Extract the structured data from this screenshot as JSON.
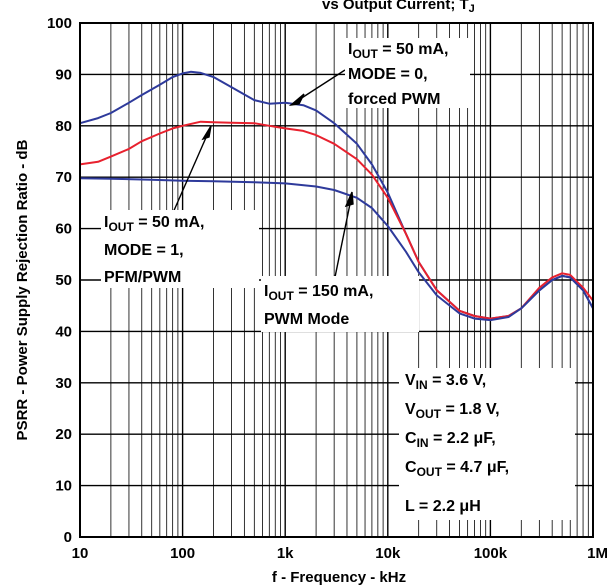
{
  "chart_data": {
    "type": "line",
    "title_fragment": "vs Output Current; T",
    "title_sub": "J",
    "xlabel": "f - Frequency - kHz",
    "ylabel": "PSRR - Power Supply Rejection Ratio - dB",
    "x_scale": "log",
    "xlim": [
      0.01,
      1000
    ],
    "ylim": [
      0,
      100
    ],
    "grid": true,
    "x_tick_labels": [
      {
        "v": 0.01,
        "label": "10"
      },
      {
        "v": 0.1,
        "label": "100"
      },
      {
        "v": 1,
        "label": "1k"
      },
      {
        "v": 10,
        "label": "10k"
      },
      {
        "v": 100,
        "label": "100k"
      },
      {
        "v": 1000,
        "label": "1M"
      }
    ],
    "y_ticks": [
      0,
      10,
      20,
      30,
      40,
      50,
      60,
      70,
      80,
      90,
      100
    ],
    "series": [
      {
        "name": "forced-pwm",
        "color": "#2e3a9b",
        "x": [
          0.01,
          0.015,
          0.02,
          0.03,
          0.04,
          0.06,
          0.08,
          0.1,
          0.12,
          0.15,
          0.2,
          0.3,
          0.5,
          0.7,
          1,
          1.5,
          2,
          3,
          5,
          7,
          10,
          15,
          20,
          30,
          50,
          70,
          100,
          150,
          200,
          300,
          400,
          500,
          600,
          800,
          1000
        ],
        "values": [
          80.5,
          81.5,
          82.5,
          84.5,
          86,
          88,
          89.5,
          90.2,
          90.5,
          90.3,
          89.5,
          87.5,
          85,
          84.3,
          84.5,
          84,
          83,
          80.5,
          76.5,
          72.5,
          67,
          59,
          53.5,
          48,
          44,
          43,
          42.5,
          43,
          44.5,
          48,
          50,
          50.8,
          50.5,
          48,
          44.5
        ]
      },
      {
        "name": "pfm-pwm",
        "color": "#e8212e",
        "x": [
          0.01,
          0.015,
          0.02,
          0.03,
          0.04,
          0.06,
          0.08,
          0.1,
          0.15,
          0.2,
          0.3,
          0.5,
          0.7,
          1,
          1.5,
          2,
          3,
          5,
          7,
          10,
          15,
          20,
          30,
          50,
          70,
          100,
          150,
          200,
          300,
          400,
          500,
          600,
          800,
          1000
        ],
        "values": [
          72.5,
          73,
          74,
          75.5,
          77,
          78.5,
          79.5,
          80,
          80.8,
          80.7,
          80.6,
          80.5,
          80,
          79.5,
          79,
          78.2,
          76.5,
          73.5,
          70.5,
          66,
          59,
          53.5,
          48,
          44,
          43,
          42.5,
          43,
          44.5,
          48.5,
          50.5,
          51.3,
          51,
          48.5,
          46
        ]
      },
      {
        "name": "pwm-150",
        "color": "#2e3a9b",
        "x": [
          0.01,
          0.02,
          0.05,
          0.1,
          0.2,
          0.5,
          1,
          2,
          3,
          5,
          7,
          10,
          15,
          20,
          30,
          50,
          70,
          100,
          150,
          200,
          300,
          400,
          500,
          600,
          800,
          1000
        ],
        "values": [
          69.8,
          69.7,
          69.5,
          69.3,
          69.2,
          69,
          68.8,
          68.2,
          67.5,
          66,
          64,
          60.5,
          55.5,
          51.5,
          47,
          43.5,
          42.5,
          42.2,
          42.8,
          44.5,
          48,
          50,
          50.8,
          50.5,
          48,
          44.5
        ]
      }
    ],
    "annotations": {
      "forced": {
        "l1_main": "I",
        "l1_sub": "OUT",
        "l1_rest": " = 50 mA,",
        "l2": "MODE = 0,",
        "l3": "forced PWM"
      },
      "pfm": {
        "l1_main": "I",
        "l1_sub": "OUT",
        "l1_rest": " = 50 mA,",
        "l2": "MODE = 1,",
        "l3": "PFM/PWM"
      },
      "pwm": {
        "l1_main": "I",
        "l1_sub": "OUT",
        "l1_rest": " = 150 mA,",
        "l2": "PWM Mode"
      },
      "conditions": {
        "vin_main": "V",
        "vin_sub": "IN",
        "vin_rest": " = 3.6 V,",
        "vout_main": "V",
        "vout_sub": "OUT",
        "vout_rest": " = 1.8 V,",
        "cin_main": "C",
        "cin_sub": "IN",
        "cin_rest": " = 2.2 μF,",
        "cout_main": "C",
        "cout_sub": "OUT",
        "cout_rest": " = 4.7 μF,",
        "l_line": "L = 2.2 μH"
      }
    }
  }
}
